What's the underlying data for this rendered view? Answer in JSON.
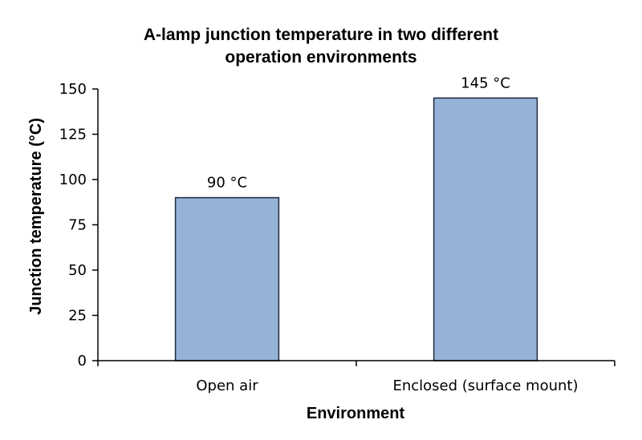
{
  "chart_data": {
    "type": "bar",
    "title_lines": [
      "A-lamp junction temperature in two different",
      "operation environments"
    ],
    "xlabel": "Environment",
    "ylabel": "Junction temperature (°C)",
    "categories": [
      "Open air",
      "Enclosed (surface mount)"
    ],
    "values": [
      90,
      145
    ],
    "data_labels": [
      "90 °C",
      "145 °C"
    ],
    "ylim": [
      0,
      150
    ],
    "yticks": [
      0,
      25,
      50,
      75,
      100,
      125,
      150
    ],
    "ytick_labels": [
      "0",
      "25",
      "50",
      "75",
      "100",
      "125",
      "150"
    ],
    "grid": false,
    "legend": "none",
    "bar_color": "#95b3d7",
    "bar_edge_color": "#1f2a44"
  }
}
